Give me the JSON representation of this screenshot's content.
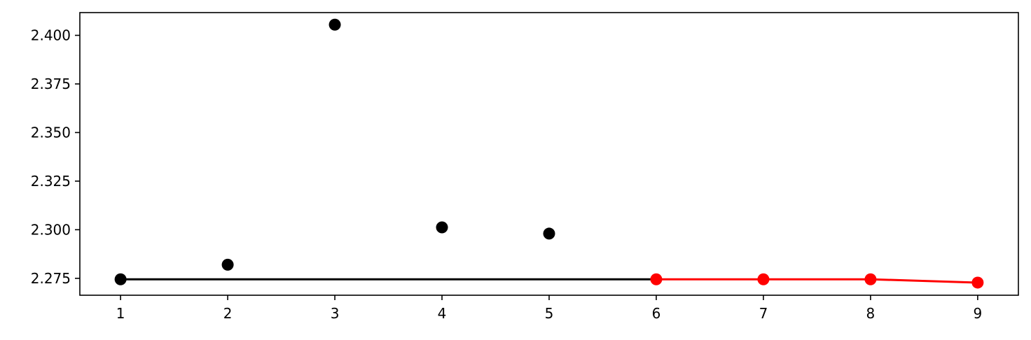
{
  "chart_data": {
    "type": "line",
    "title": "",
    "xlabel": "",
    "ylabel": "",
    "xlim": [
      0.62,
      9.38
    ],
    "ylim": [
      2.2663,
      2.4117
    ],
    "grid": false,
    "legend": "none",
    "xticks": [
      1,
      2,
      3,
      4,
      5,
      6,
      7,
      8,
      9
    ],
    "xtick_labels": [
      "1",
      "2",
      "3",
      "4",
      "5",
      "6",
      "7",
      "8",
      "9"
    ],
    "yticks": [
      2.275,
      2.3,
      2.325,
      2.35,
      2.375,
      2.4
    ],
    "ytick_labels": [
      "2.275",
      "2.300",
      "2.325",
      "2.350",
      "2.375",
      "2.400"
    ],
    "series": [
      {
        "color": "#000000",
        "mode": "markers",
        "x": [
          1,
          2,
          3,
          4,
          5
        ],
        "y": [
          2.2745,
          2.282,
          2.4055,
          2.3012,
          2.298
        ]
      },
      {
        "color": "#000000",
        "mode": "line",
        "x": [
          1,
          6
        ],
        "y": [
          2.2745,
          2.2745
        ]
      },
      {
        "color": "#ff0000",
        "mode": "lines+markers",
        "x": [
          6,
          7,
          8,
          9
        ],
        "y": [
          2.2745,
          2.2745,
          2.2745,
          2.2728
        ]
      }
    ]
  }
}
